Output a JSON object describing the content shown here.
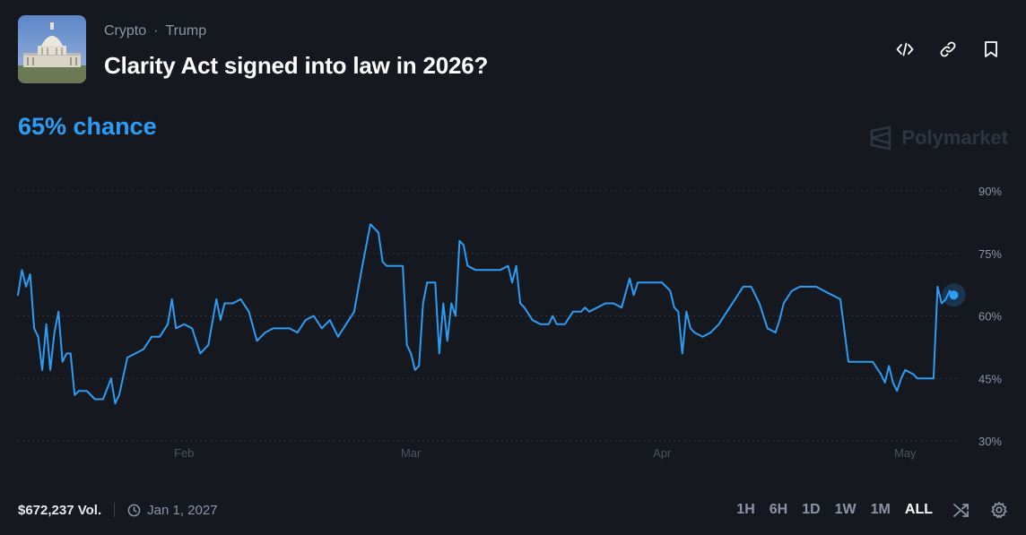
{
  "header": {
    "breadcrumbs": [
      "Crypto",
      "Trump"
    ],
    "title": "Clarity Act signed into law in 2026?",
    "actions": [
      "embed-icon",
      "link-icon",
      "bookmark-icon"
    ]
  },
  "chance_text": "65% chance",
  "brand": "Polymarket",
  "footer": {
    "volume": "$672,237 Vol.",
    "end_date": "Jan 1, 2027",
    "ranges": [
      "1H",
      "6H",
      "1D",
      "1W",
      "1M",
      "ALL"
    ],
    "active_range": "ALL"
  },
  "colors": {
    "line": "#2c9cf4",
    "background": "#15191f",
    "grid": "#3a414c",
    "muted": "#8a94a6"
  },
  "chart_data": {
    "type": "line",
    "ylim": [
      30,
      90
    ],
    "yticks": [
      30,
      45,
      60,
      75,
      90
    ],
    "ytick_labels": [
      "30%",
      "45%",
      "60%",
      "75%",
      "90%"
    ],
    "grid": true,
    "x_ticks": [
      {
        "label": "Feb",
        "day": 31
      },
      {
        "label": "Mar",
        "day": 59
      },
      {
        "label": "Apr",
        "day": 90
      },
      {
        "label": "May",
        "day": 120
      }
    ],
    "xlim": [
      10.5,
      126.5
    ],
    "series": [
      {
        "values": [
          [
            10.5,
            65
          ],
          [
            11,
            71
          ],
          [
            11.5,
            67
          ],
          [
            12,
            70
          ],
          [
            12.5,
            57
          ],
          [
            13,
            55
          ],
          [
            13.5,
            47
          ],
          [
            14,
            58
          ],
          [
            14.5,
            47
          ],
          [
            15,
            56
          ],
          [
            15.5,
            61
          ],
          [
            16,
            49
          ],
          [
            16.5,
            51
          ],
          [
            17,
            51
          ],
          [
            17.5,
            41
          ],
          [
            18,
            42
          ],
          [
            19,
            42
          ],
          [
            20,
            40
          ],
          [
            21,
            40
          ],
          [
            22,
            45
          ],
          [
            22.5,
            39
          ],
          [
            23,
            41
          ],
          [
            24,
            50
          ],
          [
            25,
            51
          ],
          [
            26,
            52
          ],
          [
            27,
            55
          ],
          [
            28,
            55
          ],
          [
            29,
            58
          ],
          [
            29.5,
            64
          ],
          [
            30,
            57
          ],
          [
            31,
            58
          ],
          [
            32,
            57
          ],
          [
            33,
            51
          ],
          [
            34,
            53
          ],
          [
            35,
            64
          ],
          [
            35.5,
            59
          ],
          [
            36,
            63
          ],
          [
            37,
            63
          ],
          [
            38,
            64
          ],
          [
            39,
            61
          ],
          [
            40,
            54
          ],
          [
            41,
            56
          ],
          [
            42,
            57
          ],
          [
            43,
            57
          ],
          [
            44,
            57
          ],
          [
            45,
            56
          ],
          [
            46,
            59
          ],
          [
            47,
            60
          ],
          [
            48,
            57
          ],
          [
            49,
            59
          ],
          [
            50,
            55
          ],
          [
            51,
            58
          ],
          [
            52,
            61
          ],
          [
            53,
            72
          ],
          [
            54,
            82
          ],
          [
            55,
            80
          ],
          [
            55.5,
            73
          ],
          [
            56,
            72
          ],
          [
            57,
            72
          ],
          [
            58,
            72
          ],
          [
            58.5,
            53
          ],
          [
            59,
            51
          ],
          [
            59.5,
            47
          ],
          [
            60,
            48
          ],
          [
            60.5,
            63
          ],
          [
            61,
            68
          ],
          [
            62,
            68
          ],
          [
            62.5,
            51
          ],
          [
            63,
            63
          ],
          [
            63.5,
            54
          ],
          [
            64,
            63
          ],
          [
            64.5,
            60
          ],
          [
            65,
            78
          ],
          [
            65.5,
            77
          ],
          [
            66,
            72
          ],
          [
            67,
            71
          ],
          [
            68,
            71
          ],
          [
            69,
            71
          ],
          [
            70,
            71
          ],
          [
            71,
            72
          ],
          [
            71.5,
            68
          ],
          [
            72,
            72
          ],
          [
            72.5,
            63
          ],
          [
            73,
            62
          ],
          [
            74,
            59
          ],
          [
            75,
            58
          ],
          [
            76,
            58
          ],
          [
            76.5,
            60
          ],
          [
            77,
            58
          ],
          [
            78,
            58
          ],
          [
            79,
            61
          ],
          [
            80,
            61
          ],
          [
            80.5,
            62
          ],
          [
            81,
            61
          ],
          [
            82,
            62
          ],
          [
            83,
            63
          ],
          [
            84,
            63
          ],
          [
            85,
            62
          ],
          [
            86,
            69
          ],
          [
            86.5,
            65
          ],
          [
            87,
            68
          ],
          [
            88,
            68
          ],
          [
            89,
            68
          ],
          [
            90,
            68
          ],
          [
            91,
            66
          ],
          [
            91.5,
            62
          ],
          [
            92,
            61
          ],
          [
            92.5,
            51
          ],
          [
            93,
            61
          ],
          [
            93.5,
            57
          ],
          [
            94,
            56
          ],
          [
            95,
            55
          ],
          [
            96,
            56
          ],
          [
            97,
            58
          ],
          [
            98,
            61
          ],
          [
            99,
            64
          ],
          [
            100,
            67
          ],
          [
            101,
            67
          ],
          [
            102,
            63
          ],
          [
            103,
            57
          ],
          [
            104,
            56
          ],
          [
            104.5,
            59
          ],
          [
            105,
            63
          ],
          [
            106,
            66
          ],
          [
            107,
            67
          ],
          [
            108,
            67
          ],
          [
            109,
            67
          ],
          [
            110,
            66
          ],
          [
            111,
            65
          ],
          [
            112,
            64
          ],
          [
            113,
            49
          ],
          [
            114,
            49
          ],
          [
            115,
            49
          ],
          [
            116,
            49
          ],
          [
            117,
            46
          ],
          [
            117.5,
            44
          ],
          [
            118,
            48
          ],
          [
            118.5,
            44
          ],
          [
            119,
            42
          ],
          [
            119.5,
            45
          ],
          [
            120,
            47
          ],
          [
            121,
            46
          ],
          [
            121.5,
            45
          ],
          [
            122,
            45
          ],
          [
            123,
            45
          ],
          [
            123.5,
            45
          ],
          [
            124,
            67
          ],
          [
            124.5,
            63
          ],
          [
            125,
            64
          ],
          [
            125.5,
            66
          ],
          [
            126,
            65
          ]
        ]
      }
    ]
  }
}
